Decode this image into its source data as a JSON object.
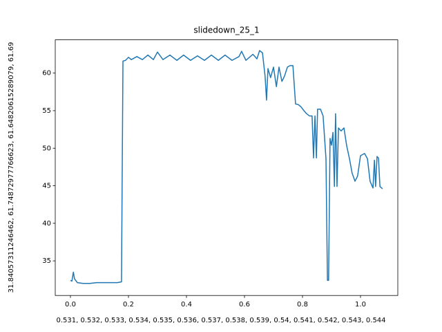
{
  "chart_data": {
    "type": "line",
    "title": "slidedown_25_1",
    "x_label": "0.531, 0.532, 0.533, 0.534, 0.535, 0.536, 0.537, 0.538, 0.539, 0.54, 0.541, 0.542, 0.543, 0.544",
    "y_label": "31.84057311246462, 61.74872977766623, 61.64820615289079, 61.69",
    "x": [
      0,
      0.005,
      0.01,
      0.014,
      0.024,
      0.043,
      0.067,
      0.09,
      0.114,
      0.138,
      0.162,
      0.176,
      0.181,
      0.19,
      0.2,
      0.21,
      0.229,
      0.248,
      0.267,
      0.286,
      0.3,
      0.319,
      0.343,
      0.367,
      0.39,
      0.414,
      0.438,
      0.462,
      0.486,
      0.51,
      0.533,
      0.557,
      0.581,
      0.59,
      0.605,
      0.629,
      0.643,
      0.652,
      0.662,
      0.671,
      0.676,
      0.681,
      0.69,
      0.7,
      0.71,
      0.719,
      0.729,
      0.738,
      0.748,
      0.757,
      0.767,
      0.776,
      0.786,
      0.795,
      0.805,
      0.814,
      0.824,
      0.833,
      0.838,
      0.843,
      0.848,
      0.852,
      0.862,
      0.871,
      0.881,
      0.886,
      0.89,
      0.895,
      0.9,
      0.905,
      0.91,
      0.914,
      0.919,
      0.924,
      0.933,
      0.943,
      0.952,
      0.962,
      0.971,
      0.981,
      0.99,
      1.0,
      1.014,
      1.024,
      1.033,
      1.043,
      1.048,
      1.052,
      1.057,
      1.062,
      1.067,
      1.076
    ],
    "series": [
      {
        "color": "#1f77b4",
        "values": [
          32.4,
          32.3,
          33.5,
          32.6,
          32.1,
          32.0,
          32.0,
          32.1,
          32.1,
          32.1,
          32.1,
          32.2,
          61.6,
          61.7,
          62.1,
          61.8,
          62.2,
          61.8,
          62.4,
          61.8,
          62.8,
          61.8,
          62.4,
          61.7,
          62.4,
          61.7,
          62.3,
          61.7,
          62.4,
          61.7,
          62.4,
          61.7,
          62.2,
          62.9,
          61.7,
          62.5,
          61.9,
          63.0,
          62.7,
          59.6,
          56.4,
          60.6,
          59.4,
          60.8,
          58.2,
          60.8,
          58.9,
          59.6,
          60.8,
          61.0,
          61.0,
          55.9,
          55.8,
          55.5,
          55.0,
          54.6,
          54.3,
          54.3,
          48.7,
          54.3,
          48.7,
          55.2,
          55.2,
          54.3,
          48.6,
          32.4,
          32.4,
          51.3,
          50.4,
          52.1,
          44.9,
          54.6,
          44.9,
          52.7,
          52.3,
          52.7,
          50.4,
          48.6,
          46.7,
          45.6,
          46.3,
          49.0,
          49.3,
          48.6,
          45.6,
          44.7,
          48.4,
          44.9,
          48.9,
          48.7,
          44.9,
          44.6
        ]
      }
    ],
    "xlim": [
      -0.0524,
      1.1286
    ],
    "ylim": [
      30.39,
      64.43
    ],
    "xticks": [
      {
        "value": 0,
        "label": "0.0"
      },
      0.2,
      0.4,
      0.6,
      0.8,
      {
        "value": 1,
        "label": "1.0"
      }
    ],
    "yticks": [
      35,
      40,
      45,
      50,
      55,
      60
    ]
  }
}
